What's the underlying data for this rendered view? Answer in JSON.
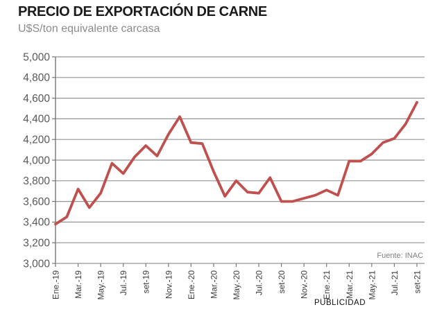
{
  "header": {
    "title": "PRECIO DE EXPORTACIÓN DE CARNE",
    "subtitle": "U$S/ton equivalente carcasa"
  },
  "footer": {
    "ad_label": "PUBLICIDAD"
  },
  "colors": {
    "line": "#c0504d",
    "grid": "#949494",
    "axis": "#777777",
    "y_tick_label": "#595959",
    "x_tick_label": "#3d3d3d",
    "source": "#7f7f7f",
    "title": "#1a1a1a",
    "subtitle": "#8c8c8c",
    "background": "#ffffff"
  },
  "chart_data": {
    "type": "line",
    "title": "PRECIO DE EXPORTACIÓN DE CARNE",
    "ylabel": "U$S/ton equivalente carcasa",
    "source": "Fuente: INAC",
    "ylim": [
      3000,
      5000
    ],
    "ytick_step": 200,
    "y_tick_labels": [
      "3,000",
      "3,200",
      "3,400",
      "3,600",
      "3,800",
      "4,000",
      "4,200",
      "4,400",
      "4,600",
      "4,800",
      "5,000"
    ],
    "x_count": 33,
    "x_tick_every": 2,
    "x_tick_labels": [
      "Ene.-19",
      "Mar.-19",
      "May.-19",
      "Jul.-19",
      "set-19",
      "Nov.-19",
      "Ene.-20",
      "Mar.-20",
      "May.-20",
      "Jul.-20",
      "set-20",
      "Nov.-20",
      "Ene.-21",
      "Mar.-21",
      "May.-21",
      "Jul.-21",
      "set-21"
    ],
    "grid": true,
    "legend": "none",
    "values": [
      3380,
      3450,
      3720,
      3540,
      3680,
      3970,
      3870,
      4030,
      4140,
      4040,
      4250,
      4420,
      4170,
      4160,
      3890,
      3650,
      3800,
      3690,
      3680,
      3830,
      3600,
      3600,
      3630,
      3660,
      3710,
      3660,
      3990,
      3990,
      4060,
      4170,
      4210,
      4350,
      4560
    ]
  }
}
